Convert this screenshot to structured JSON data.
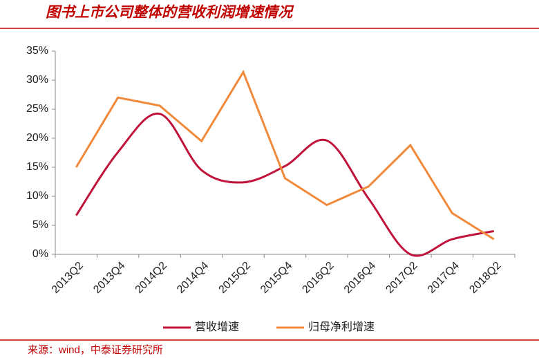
{
  "title": "图书上市公司整体的营收利润增速情况",
  "source": "来源：wind，中泰证券研究所",
  "chart_data": {
    "type": "line",
    "categories": [
      "2013Q2",
      "2013Q4",
      "2014Q2",
      "2014Q4",
      "2015Q2",
      "2015Q4",
      "2016Q2",
      "2016Q4",
      "2017Q2",
      "2017Q4",
      "2018Q2"
    ],
    "series": [
      {
        "name": "营收增速",
        "color": "#c0143c",
        "smooth": true,
        "values": [
          6.7,
          17.6,
          24.2,
          14.5,
          12.4,
          15.2,
          19.6,
          9.6,
          0,
          2.6,
          4.0
        ]
      },
      {
        "name": "归母净利增速",
        "color": "#f0893a",
        "smooth": false,
        "values": [
          15,
          27,
          25.6,
          19.5,
          31.4,
          13.1,
          8.5,
          11.7,
          18.8,
          7.1,
          2.6
        ]
      }
    ],
    "ylim": [
      0,
      35
    ],
    "yticks": [
      {
        "value": 0,
        "label": "0%"
      },
      {
        "value": 5,
        "label": "5%"
      },
      {
        "value": 10,
        "label": "10%"
      },
      {
        "value": 15,
        "label": "15%"
      },
      {
        "value": 20,
        "label": "20%"
      },
      {
        "value": 25,
        "label": "25%"
      },
      {
        "value": 30,
        "label": "30%"
      },
      {
        "value": 35,
        "label": "35%"
      }
    ],
    "legend": "bottom"
  }
}
